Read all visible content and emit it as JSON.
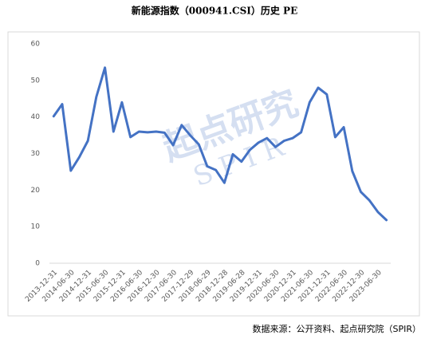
{
  "chart_data": {
    "type": "line",
    "title": "新能源指数（000941.CSI）历史 PE",
    "source": "数据来源：公开资料、起点研究院（SPIR）",
    "watermark": "起点研究",
    "watermark_sub": "S P I R",
    "categories": [
      "2013-12-31",
      null,
      "2014-06-30",
      null,
      "2014-12-31",
      null,
      "2015-06-30",
      null,
      "2015-12-31",
      null,
      "2016-06-30",
      null,
      "2016-12-30",
      null,
      "2017-06-30",
      null,
      "2017-12-29",
      null,
      "2018-06-29",
      null,
      "2018-12-28",
      null,
      "2019-06-28",
      null,
      "2019-12-31",
      null,
      "2020-06-30",
      null,
      "2020-12-31",
      null,
      "2021-06-30",
      null,
      "2021-12-31",
      null,
      "2022-06-30",
      null,
      "2022-12-30",
      null,
      "2023-06-30",
      null
    ],
    "values": [
      40.2,
      43.5,
      25.3,
      29,
      33.5,
      45.5,
      53.5,
      36,
      44,
      34.5,
      36,
      35.8,
      36,
      35.7,
      32.3,
      37.8,
      35,
      32.5,
      26.5,
      25.5,
      22,
      29.8,
      27.8,
      31,
      33,
      34.2,
      31.8,
      33.5,
      34.2,
      35.8,
      44,
      48,
      46.2,
      34.5,
      37.2,
      25.2,
      19.5,
      17.2,
      14,
      11.8
    ],
    "color": "#4472c4",
    "ylim": [
      0,
      60
    ],
    "yticks": [
      0,
      10,
      20,
      30,
      40,
      50,
      60
    ],
    "grid": false
  }
}
